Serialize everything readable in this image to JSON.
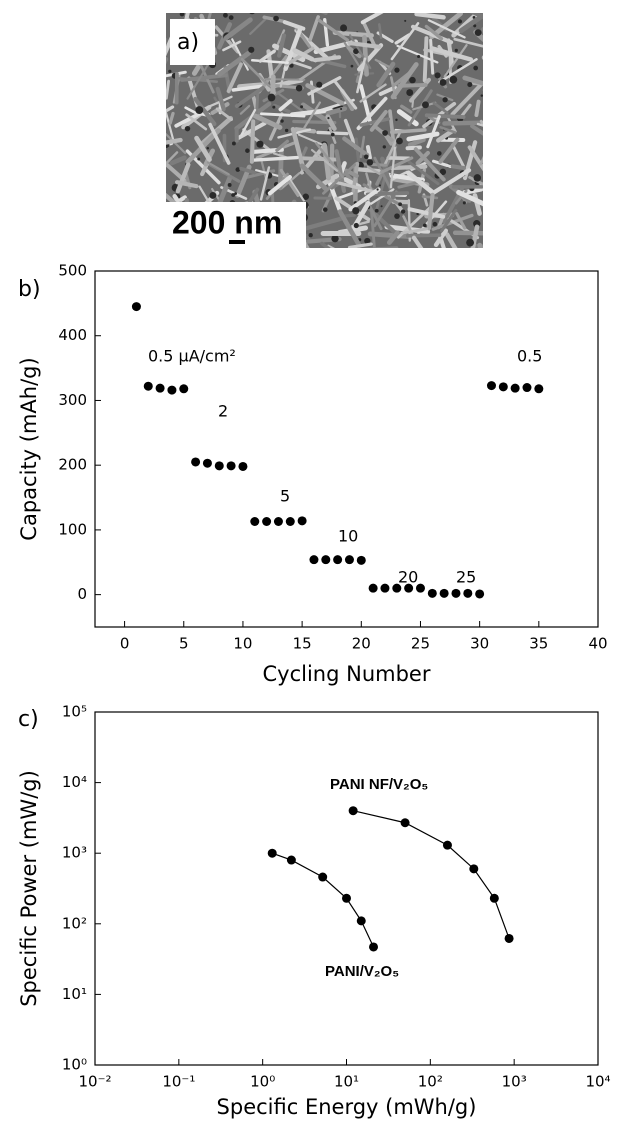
{
  "panel_a": {
    "label": "a)",
    "scale_bar": "200 nm"
  },
  "chart_data": [
    {
      "type": "scatter",
      "panel_label": "b)",
      "x_label": "Cycling Number",
      "y_label": "Capacity (mAh/g)",
      "x": [
        1,
        2,
        3,
        4,
        5,
        6,
        7,
        8,
        9,
        10,
        11,
        12,
        13,
        14,
        15,
        16,
        17,
        18,
        19,
        20,
        21,
        22,
        23,
        24,
        25,
        26,
        27,
        28,
        29,
        30,
        31,
        32,
        33,
        34,
        35
      ],
      "values": [
        445,
        322,
        319,
        316,
        318,
        205,
        203,
        199,
        199,
        198,
        113,
        113,
        113,
        113,
        114,
        54,
        54,
        54,
        54,
        53,
        10,
        10,
        10,
        10,
        10,
        2,
        2,
        2,
        2,
        1,
        323,
        321,
        319,
        320,
        318
      ],
      "color": "#000000",
      "xlim": [
        -2.5,
        40
      ],
      "ylim": [
        -50,
        500
      ],
      "xticks": [
        0,
        5,
        10,
        15,
        20,
        25,
        30,
        35,
        40
      ],
      "yticks": [
        0,
        100,
        200,
        300,
        400,
        500
      ],
      "annotations": [
        "0.5 μA/cm²",
        "2",
        "5",
        "10",
        "20",
        "25",
        "0.5"
      ]
    },
    {
      "type": "line",
      "panel_label": "c)",
      "x_label": "Specific Energy (mWh/g)",
      "y_label": "Specific Power (mW/g)",
      "log_x": true,
      "log_y": true,
      "xlim": [
        0.01,
        10000
      ],
      "ylim": [
        1,
        100000
      ],
      "xticks": [
        {
          "value": 0.01,
          "label": "10⁻²"
        },
        {
          "value": 0.1,
          "label": "10⁻¹"
        },
        {
          "value": 1,
          "label": "10⁰"
        },
        {
          "value": 10,
          "label": "10¹"
        },
        {
          "value": 100,
          "label": "10²"
        },
        {
          "value": 1000,
          "label": "10³"
        },
        {
          "value": 10000,
          "label": "10⁴"
        }
      ],
      "yticks": [
        {
          "value": 1,
          "label": "10⁰"
        },
        {
          "value": 10,
          "label": "10¹"
        },
        {
          "value": 100,
          "label": "10²"
        },
        {
          "value": 1000,
          "label": "10³"
        },
        {
          "value": 10000,
          "label": "10⁴"
        },
        {
          "value": 100000,
          "label": "10⁵"
        }
      ],
      "series": [
        {
          "name": "PANI/V₂O₅",
          "color": "#000000",
          "x": [
            1.3,
            2.2,
            5.2,
            10,
            15,
            21
          ],
          "values": [
            1000,
            800,
            460,
            230,
            110,
            47
          ]
        },
        {
          "name": "PANI NF/V₂O₅",
          "color": "#000000",
          "x": [
            12,
            50,
            160,
            330,
            580,
            870
          ],
          "values": [
            4000,
            2700,
            1300,
            600,
            230,
            62
          ]
        }
      ]
    }
  ]
}
